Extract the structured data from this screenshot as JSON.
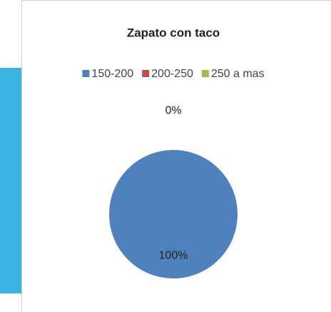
{
  "chart_data": {
    "type": "pie",
    "title": "Zapato con taco",
    "categories": [
      "150-200",
      "200-250",
      "250 a mas"
    ],
    "values": [
      100,
      0,
      0
    ],
    "value_labels": [
      "100%",
      "0%",
      null
    ],
    "colors": [
      "#4f81bd",
      "#c0504d",
      "#9bbb59"
    ],
    "legend": "top"
  }
}
